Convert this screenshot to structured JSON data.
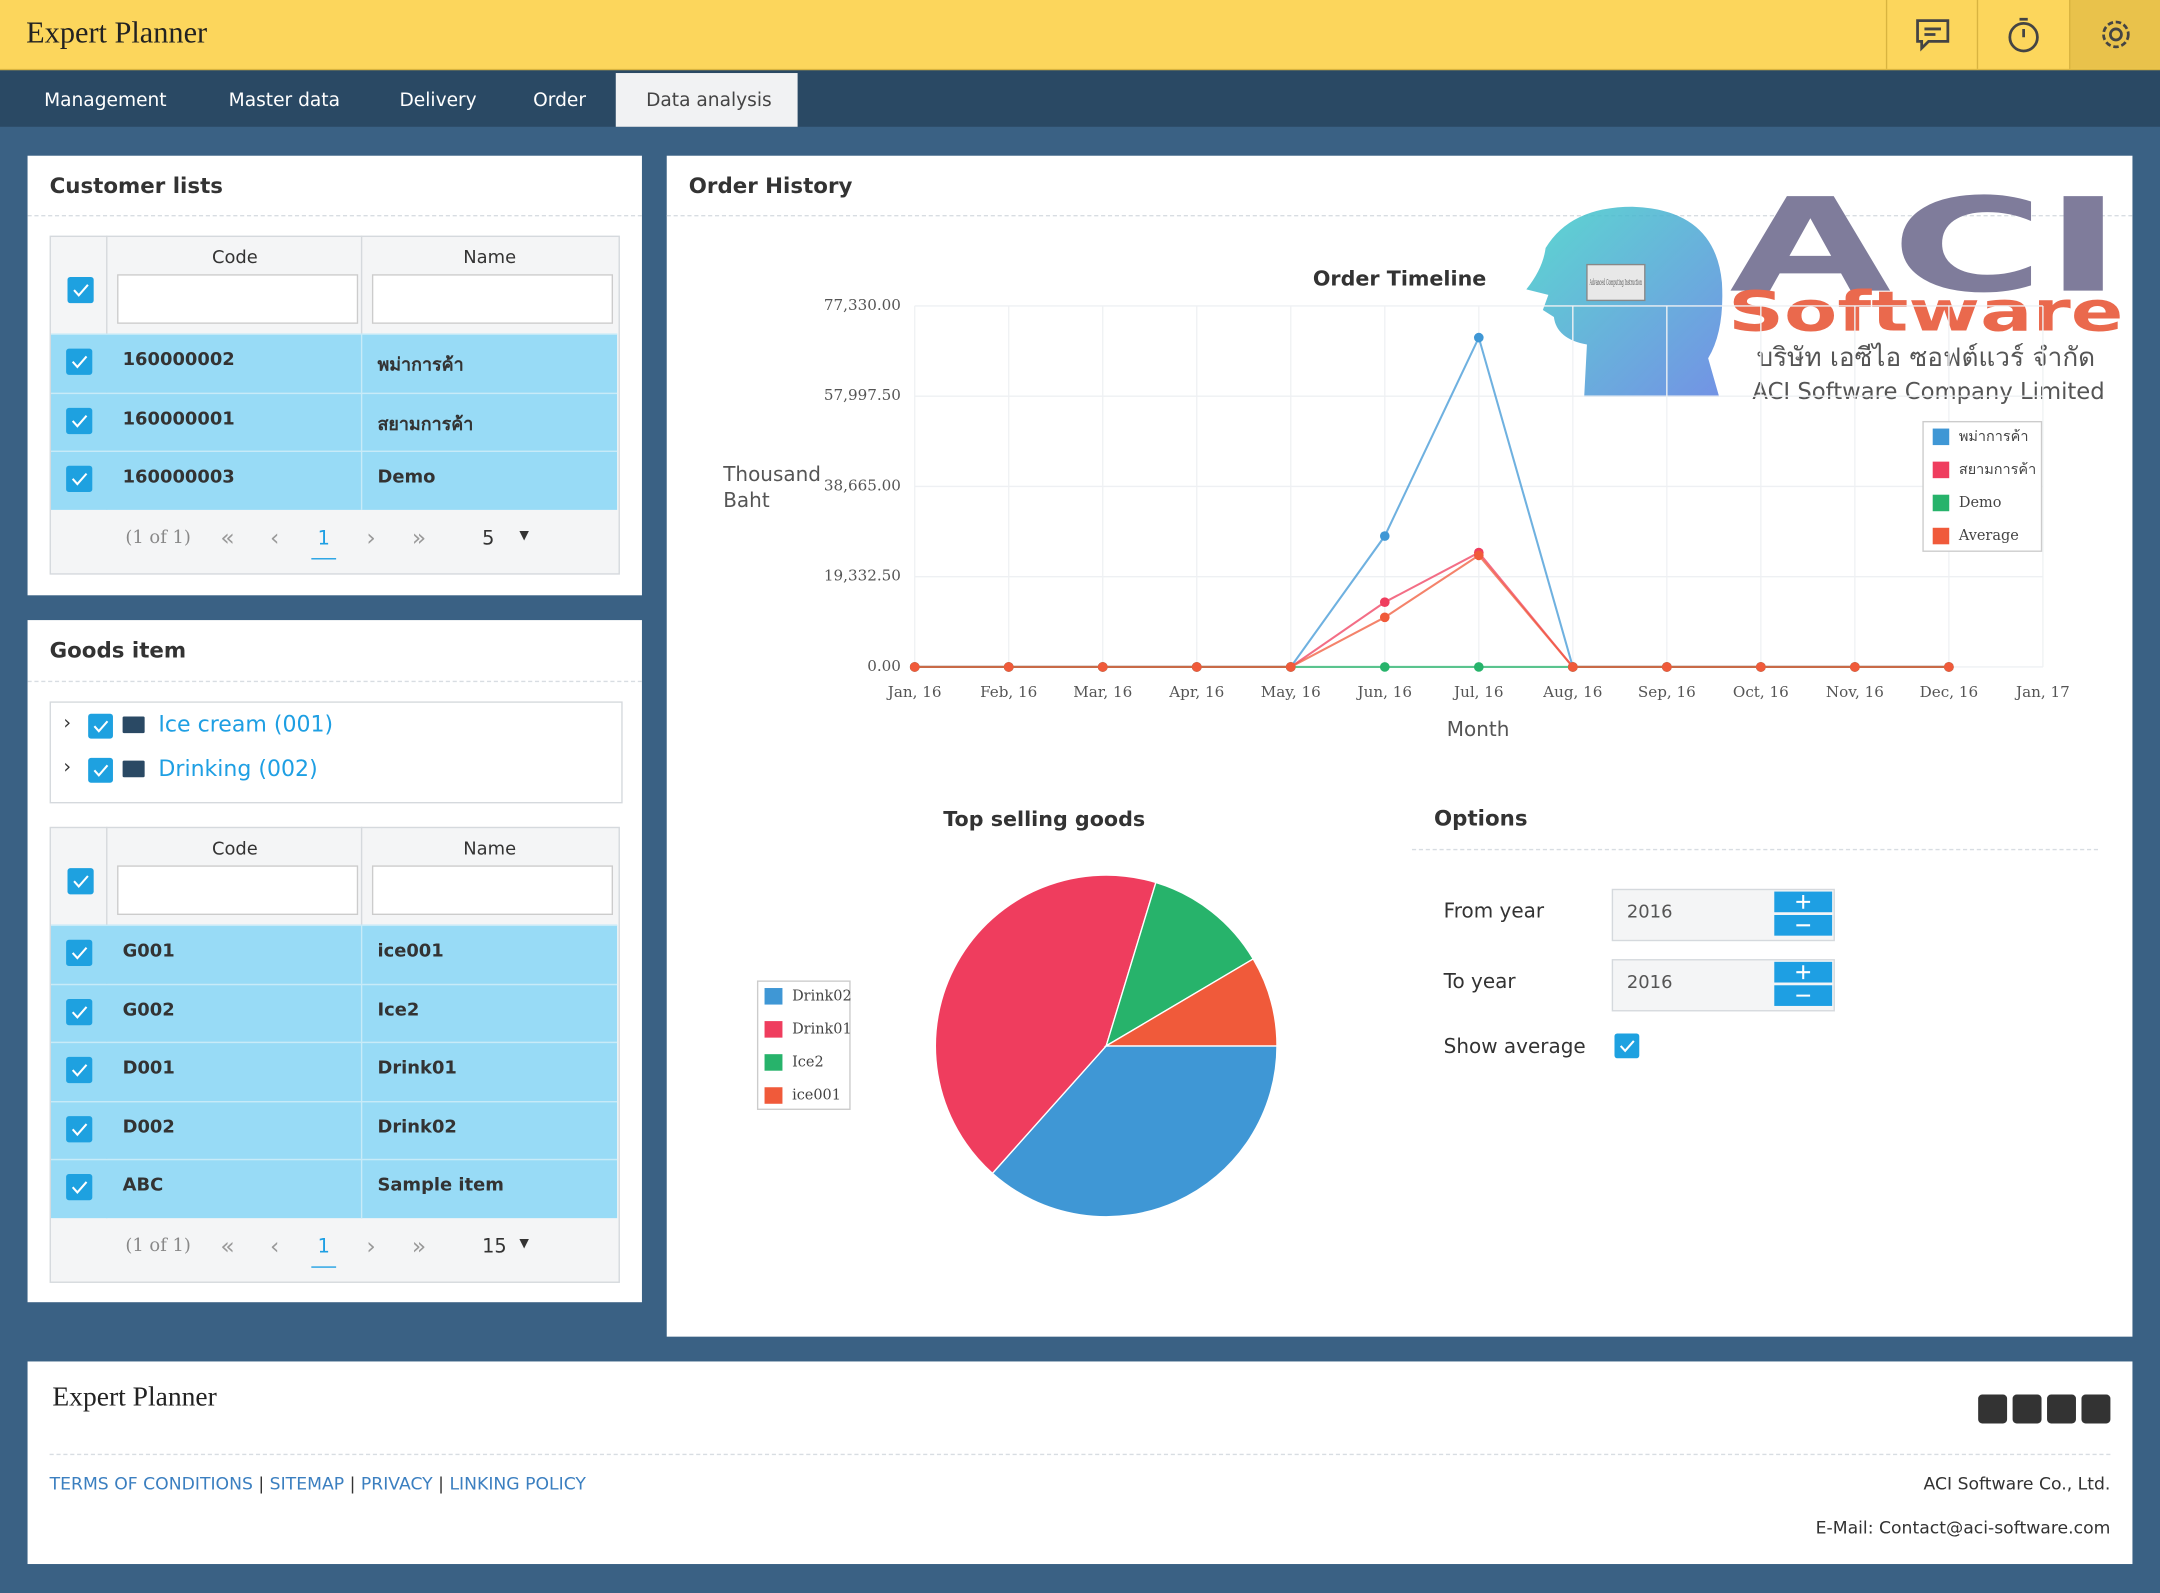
{
  "header": {
    "title": "Expert Planner"
  },
  "nav": [
    "Management",
    "Master data",
    "Delivery",
    "Order",
    "Data analysis"
  ],
  "customer_lists": {
    "title": "Customer lists",
    "columns": [
      "Code",
      "Name"
    ],
    "rows": [
      [
        "160000002",
        "พม่าการค้า"
      ],
      [
        "160000001",
        "สยามการค้า"
      ],
      [
        "160000003",
        "Demo"
      ]
    ],
    "pager": {
      "info": "(1 of 1)",
      "page": 1,
      "size": 5
    }
  },
  "goods_item": {
    "title": "Goods item",
    "tree": [
      "Ice cream (001)",
      "Drinking (002)"
    ],
    "columns": [
      "Code",
      "Name"
    ],
    "rows": [
      [
        "G001",
        "ice001"
      ],
      [
        "G002",
        "Ice2"
      ],
      [
        "D001",
        "Drink01"
      ],
      [
        "D002",
        "Drink02"
      ],
      [
        "ABC",
        "Sample item"
      ]
    ],
    "pager": {
      "info": "(1 of 1)",
      "page": 1,
      "size": 15
    }
  },
  "order_history": {
    "title": "Order History"
  },
  "logo": {
    "name": "ACI",
    "subname": "Software",
    "thai": "บริษัท เอซีไอ ซอฟต์แวร์ จำกัด",
    "company": "ACI Software Company Limited",
    "chip": "Advanced Computing Instruction"
  },
  "chart_data": [
    {
      "type": "line",
      "title": "Order Timeline",
      "y_label": "Thousand Baht",
      "x_label": "Month",
      "x": [
        "Jan, 16",
        "Feb, 16",
        "Mar, 16",
        "Apr, 16",
        "May, 16",
        "Jun, 16",
        "Jul, 16",
        "Aug, 16",
        "Sep, 16",
        "Oct, 16",
        "Nov, 16",
        "Dec, 16",
        "Jan, 17"
      ],
      "series": [
        {
          "name": "พม่าการค้า",
          "color": "#3f97d5",
          "values": [
            0,
            0,
            0,
            0,
            0,
            28040,
            70540,
            0,
            0,
            0,
            0,
            0,
            null
          ]
        },
        {
          "name": "สยามการค้า",
          "color": "#ef3d5e",
          "values": [
            0,
            0,
            0,
            0,
            0,
            13870,
            24500,
            0,
            0,
            0,
            0,
            0,
            null
          ]
        },
        {
          "name": "Demo",
          "color": "#27b36b",
          "values": [
            0,
            0,
            0,
            0,
            0,
            0,
            0,
            0,
            0,
            0,
            0,
            0,
            null
          ]
        },
        {
          "name": "Average",
          "color": "#f05a3a",
          "values": [
            0,
            0,
            0,
            0,
            0,
            10630,
            23900,
            0,
            0,
            0,
            0,
            0,
            null
          ]
        }
      ],
      "ylim": [
        0,
        77330
      ],
      "yticks": [
        {
          "value": 0,
          "label": "0.00"
        },
        {
          "value": 19332.5,
          "label": "19,332.50"
        },
        {
          "value": 38665,
          "label": "38,665.00"
        },
        {
          "value": 57997.5,
          "label": "57,997.50"
        },
        {
          "value": 77330,
          "label": "77,330.00"
        }
      ],
      "grid": true,
      "legend": "right"
    },
    {
      "type": "pie",
      "title": "Top selling goods",
      "categories": [
        "Drink02",
        "Drink01",
        "Ice2",
        "ice001"
      ],
      "values": [
        36.6,
        43.1,
        11.8,
        8.5
      ],
      "colors": [
        "#3f97d5",
        "#ef3d5e",
        "#27b36b",
        "#f05a3a"
      ],
      "legend": "left"
    }
  ],
  "options": {
    "title": "Options",
    "from_label": "From year",
    "from_value": 2016,
    "to_label": "To year",
    "to_value": 2016,
    "show_average": "Show average"
  },
  "footer": {
    "title": "Expert Planner",
    "links": [
      "TERMS OF CONDITIONS",
      "SITEMAP",
      "PRIVACY",
      "LINKING POLICY"
    ],
    "company": "ACI Software Co., Ltd.",
    "email": "E-Mail: Contact@aci-software.com"
  }
}
